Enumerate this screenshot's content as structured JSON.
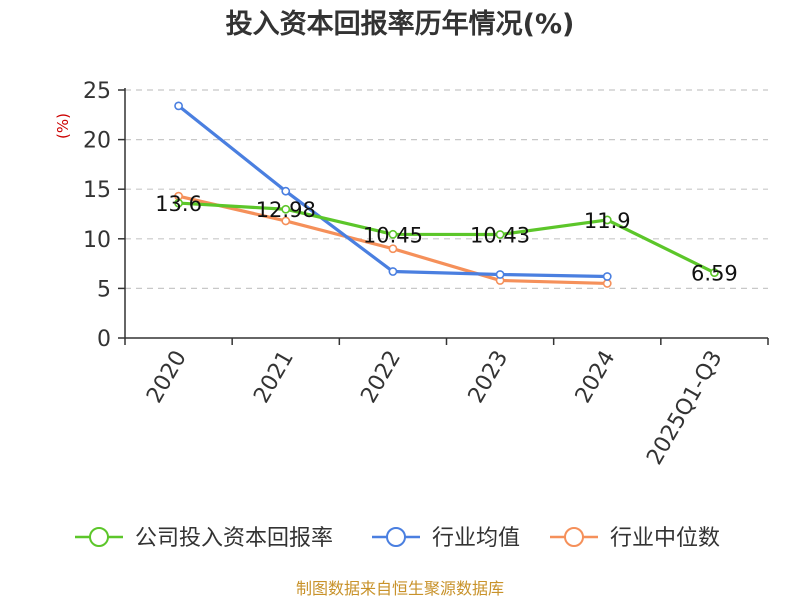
{
  "chart_data": {
    "type": "line",
    "title": "投入资本回报率历年情况(%)",
    "ylabel": "(%)",
    "xlabel": "",
    "categories": [
      "2020",
      "2021",
      "2022",
      "2023",
      "2024",
      "2025Q1-Q3"
    ],
    "ylim": [
      0,
      25
    ],
    "yticks": [
      0,
      5,
      10,
      15,
      20,
      25
    ],
    "grid": true,
    "legend_position": "bottom",
    "series": [
      {
        "name": "公司投入资本回报率",
        "color": "#5cc62a",
        "values": [
          13.6,
          12.98,
          10.45,
          10.43,
          11.9,
          6.59
        ],
        "labels": [
          "13.6",
          "12.98",
          "10.45",
          "10.43",
          "11.9",
          "6.59"
        ]
      },
      {
        "name": "行业均值",
        "color": "#4a7fe0",
        "values": [
          23.4,
          14.8,
          6.7,
          6.4,
          6.2,
          null
        ]
      },
      {
        "name": "行业中位数",
        "color": "#f5905a",
        "values": [
          14.3,
          11.8,
          9.0,
          5.8,
          5.5,
          null
        ]
      }
    ]
  },
  "footer": {
    "source": "制图数据来自恒生聚源数据库"
  }
}
